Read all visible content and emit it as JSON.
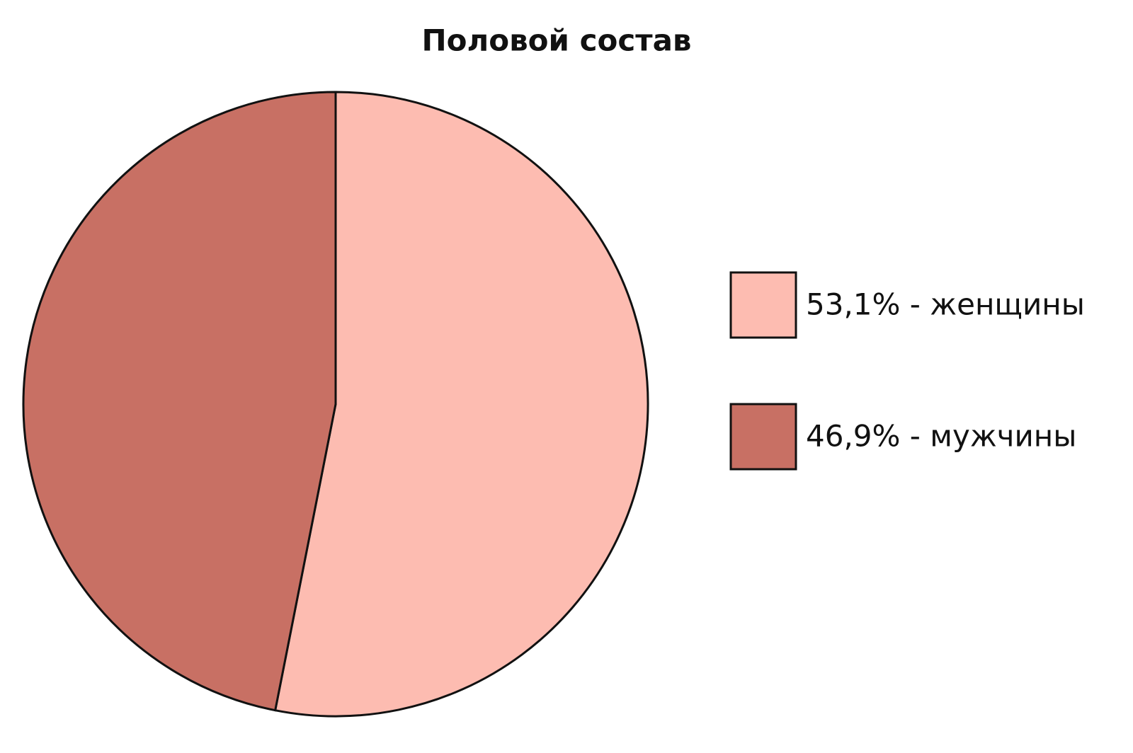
{
  "chart_data": {
    "type": "pie",
    "title": "Половой состав",
    "categories": [
      "53,1% - женщины",
      "46,9% - мужчины"
    ],
    "values": [
      53.1,
      46.9
    ],
    "colors": [
      "#fdbcb1",
      "#c87064"
    ],
    "legend": "right"
  }
}
